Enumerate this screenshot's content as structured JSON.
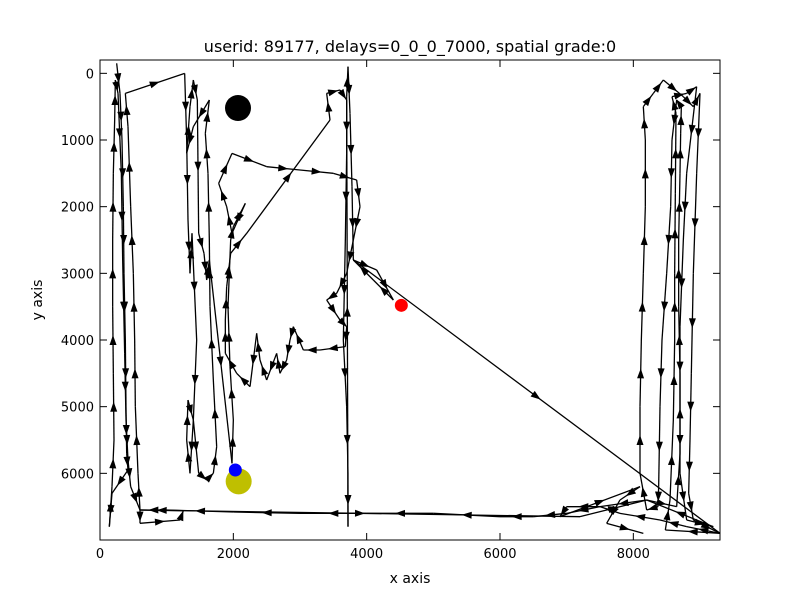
{
  "chart_data": {
    "type": "scatter",
    "title": "userid: 89177, delays=0_0_0_7000, spatial grade:0",
    "xlabel": "x axis",
    "ylabel": "y axis",
    "xlim": [
      0,
      9300
    ],
    "ylim": [
      7000,
      -200
    ],
    "y_inverted": true,
    "xticks": [
      0,
      2000,
      4000,
      6000,
      8000
    ],
    "yticks": [
      0,
      1000,
      2000,
      3000,
      4000,
      5000,
      6000
    ],
    "grid": false,
    "legend": "none",
    "path": {
      "color": "#000000",
      "points": [
        [
          250,
          -150
        ],
        [
          300,
          300
        ],
        [
          330,
          1000
        ],
        [
          350,
          2000
        ],
        [
          360,
          3000
        ],
        [
          380,
          4000
        ],
        [
          390,
          5000
        ],
        [
          400,
          5700
        ],
        [
          420,
          5950
        ],
        [
          180,
          6300
        ],
        [
          140,
          6800
        ],
        [
          180,
          6200
        ],
        [
          210,
          5500
        ],
        [
          200,
          4500
        ],
        [
          190,
          3500
        ],
        [
          190,
          2500
        ],
        [
          200,
          1500
        ],
        [
          220,
          700
        ],
        [
          230,
          100
        ],
        [
          270,
          300
        ],
        [
          320,
          1500
        ],
        [
          340,
          2800
        ],
        [
          370,
          4200
        ],
        [
          390,
          5200
        ],
        [
          420,
          5800
        ],
        [
          460,
          6200
        ],
        [
          600,
          6550
        ],
        [
          600,
          6750
        ],
        [
          1200,
          6700
        ],
        [
          1250,
          6560
        ],
        [
          600,
          6550
        ],
        [
          570,
          6000
        ],
        [
          530,
          5000
        ],
        [
          520,
          4000
        ],
        [
          500,
          3000
        ],
        [
          460,
          2000
        ],
        [
          420,
          800
        ],
        [
          380,
          300
        ],
        [
          1270,
          0
        ],
        [
          1300,
          1000
        ],
        [
          1320,
          2200
        ],
        [
          1350,
          3000
        ],
        [
          1380,
          2400
        ],
        [
          1450,
          4000
        ],
        [
          1400,
          5200
        ],
        [
          1350,
          6000
        ],
        [
          1300,
          5500
        ],
        [
          1320,
          4900
        ],
        [
          1400,
          5200
        ],
        [
          1480,
          6000
        ],
        [
          1600,
          6100
        ],
        [
          1700,
          6000
        ],
        [
          1750,
          5600
        ],
        [
          1700,
          4600
        ],
        [
          1650,
          3500
        ],
        [
          1640,
          2500
        ],
        [
          1620,
          1500
        ],
        [
          1580,
          900
        ],
        [
          1640,
          400
        ],
        [
          1400,
          800
        ],
        [
          1300,
          1200
        ],
        [
          1350,
          500
        ],
        [
          1400,
          100
        ],
        [
          1460,
          400
        ],
        [
          1480,
          2400
        ],
        [
          1560,
          2700
        ],
        [
          1600,
          3100
        ],
        [
          1640,
          2800
        ],
        [
          1980,
          5850
        ],
        [
          2000,
          5200
        ],
        [
          1950,
          4400
        ],
        [
          1920,
          3500
        ],
        [
          1960,
          2500
        ],
        [
          2000,
          2300
        ],
        [
          2180,
          1950
        ],
        [
          1980,
          2400
        ],
        [
          1900,
          2000
        ],
        [
          1780,
          1650
        ],
        [
          1980,
          1200
        ],
        [
          2500,
          1400
        ],
        [
          3000,
          1450
        ],
        [
          3500,
          1500
        ],
        [
          3850,
          1600
        ],
        [
          3900,
          2000
        ],
        [
          3800,
          2500
        ],
        [
          3700,
          3000
        ],
        [
          3550,
          3300
        ],
        [
          3400,
          3400
        ],
        [
          3600,
          3700
        ],
        [
          3700,
          3800
        ],
        [
          3680,
          4100
        ],
        [
          3300,
          4150
        ],
        [
          3050,
          4150
        ],
        [
          2900,
          3800
        ],
        [
          2850,
          4000
        ],
        [
          2800,
          4300
        ],
        [
          2700,
          4500
        ],
        [
          2650,
          4200
        ],
        [
          2500,
          4600
        ],
        [
          2400,
          4300
        ],
        [
          2350,
          3900
        ],
        [
          2250,
          4700
        ],
        [
          2050,
          4500
        ],
        [
          1880,
          4200
        ],
        [
          1880,
          3700
        ],
        [
          1900,
          3200
        ],
        [
          1960,
          2700
        ],
        [
          2200,
          2400
        ],
        [
          3450,
          700
        ],
        [
          3400,
          300
        ],
        [
          3600,
          250
        ],
        [
          3700,
          400
        ],
        [
          3700,
          1200
        ],
        [
          3680,
          2500
        ],
        [
          3650,
          4000
        ],
        [
          3700,
          5000
        ],
        [
          3720,
          6000
        ],
        [
          3720,
          6800
        ],
        [
          3700,
          350
        ],
        [
          3720,
          -100
        ],
        [
          3750,
          600
        ],
        [
          3780,
          1700
        ],
        [
          3800,
          2800
        ],
        [
          4150,
          2950
        ],
        [
          4400,
          3400
        ],
        [
          4100,
          3100
        ],
        [
          3800,
          2800
        ],
        [
          9300,
          6900
        ],
        [
          8800,
          6800
        ],
        [
          8400,
          6700
        ],
        [
          7800,
          6600
        ],
        [
          7500,
          6500
        ],
        [
          7000,
          6600
        ],
        [
          6500,
          6650
        ],
        [
          6000,
          6650
        ],
        [
          5000,
          6600
        ],
        [
          4000,
          6600
        ],
        [
          3000,
          6600
        ],
        [
          2000,
          6580
        ],
        [
          1000,
          6550
        ],
        [
          600,
          6550
        ],
        [
          7200,
          6650
        ],
        [
          8200,
          6400
        ],
        [
          8650,
          6500
        ],
        [
          8700,
          5700
        ],
        [
          8700,
          4500
        ],
        [
          8680,
          3500
        ],
        [
          8680,
          2500
        ],
        [
          8700,
          1500
        ],
        [
          8710,
          900
        ],
        [
          8720,
          500
        ],
        [
          8650,
          400
        ],
        [
          8580,
          1000
        ],
        [
          8560,
          2000
        ],
        [
          8500,
          3000
        ],
        [
          8430,
          4000
        ],
        [
          8400,
          5000
        ],
        [
          8380,
          6200
        ],
        [
          8370,
          6500
        ],
        [
          8200,
          6550
        ],
        [
          8100,
          6000
        ],
        [
          8100,
          5000
        ],
        [
          8120,
          4000
        ],
        [
          8150,
          3000
        ],
        [
          8180,
          2000
        ],
        [
          8180,
          1000
        ],
        [
          8150,
          500
        ],
        [
          8300,
          300
        ],
        [
          8450,
          100
        ],
        [
          8750,
          350
        ],
        [
          8900,
          500
        ],
        [
          9000,
          300
        ],
        [
          8950,
          1500
        ],
        [
          8900,
          3000
        ],
        [
          8870,
          4500
        ],
        [
          8850,
          5500
        ],
        [
          8830,
          6300
        ],
        [
          8900,
          6700
        ],
        [
          9300,
          6900
        ],
        [
          8480,
          6850
        ],
        [
          8550,
          6400
        ],
        [
          8600,
          5200
        ],
        [
          8620,
          4000
        ],
        [
          8620,
          3000
        ],
        [
          8630,
          1800
        ],
        [
          8640,
          600
        ],
        [
          8580,
          350
        ],
        [
          8800,
          300
        ],
        [
          8950,
          200
        ],
        [
          8800,
          1500
        ],
        [
          8750,
          2500
        ],
        [
          8700,
          3800
        ],
        [
          8700,
          5000
        ],
        [
          8700,
          6000
        ],
        [
          8800,
          6700
        ],
        [
          9200,
          6800
        ],
        [
          8200,
          6400
        ],
        [
          7500,
          6500
        ],
        [
          7000,
          6500
        ],
        [
          6900,
          6650
        ],
        [
          8100,
          6200
        ],
        [
          7800,
          6400
        ],
        [
          7600,
          6750
        ],
        [
          8150,
          6900
        ]
      ]
    },
    "markers": [
      {
        "name": "black-target",
        "x": 2070,
        "y": 520,
        "size": "large",
        "color": "#000000"
      },
      {
        "name": "olive-target",
        "x": 2080,
        "y": 6120,
        "size": "large",
        "color": "#bfbf00"
      },
      {
        "name": "red-point",
        "x": 4520,
        "y": 3480,
        "size": "small",
        "color": "#ff0000"
      },
      {
        "name": "blue-point",
        "x": 2030,
        "y": 5950,
        "size": "small",
        "color": "#0000ff"
      }
    ]
  }
}
